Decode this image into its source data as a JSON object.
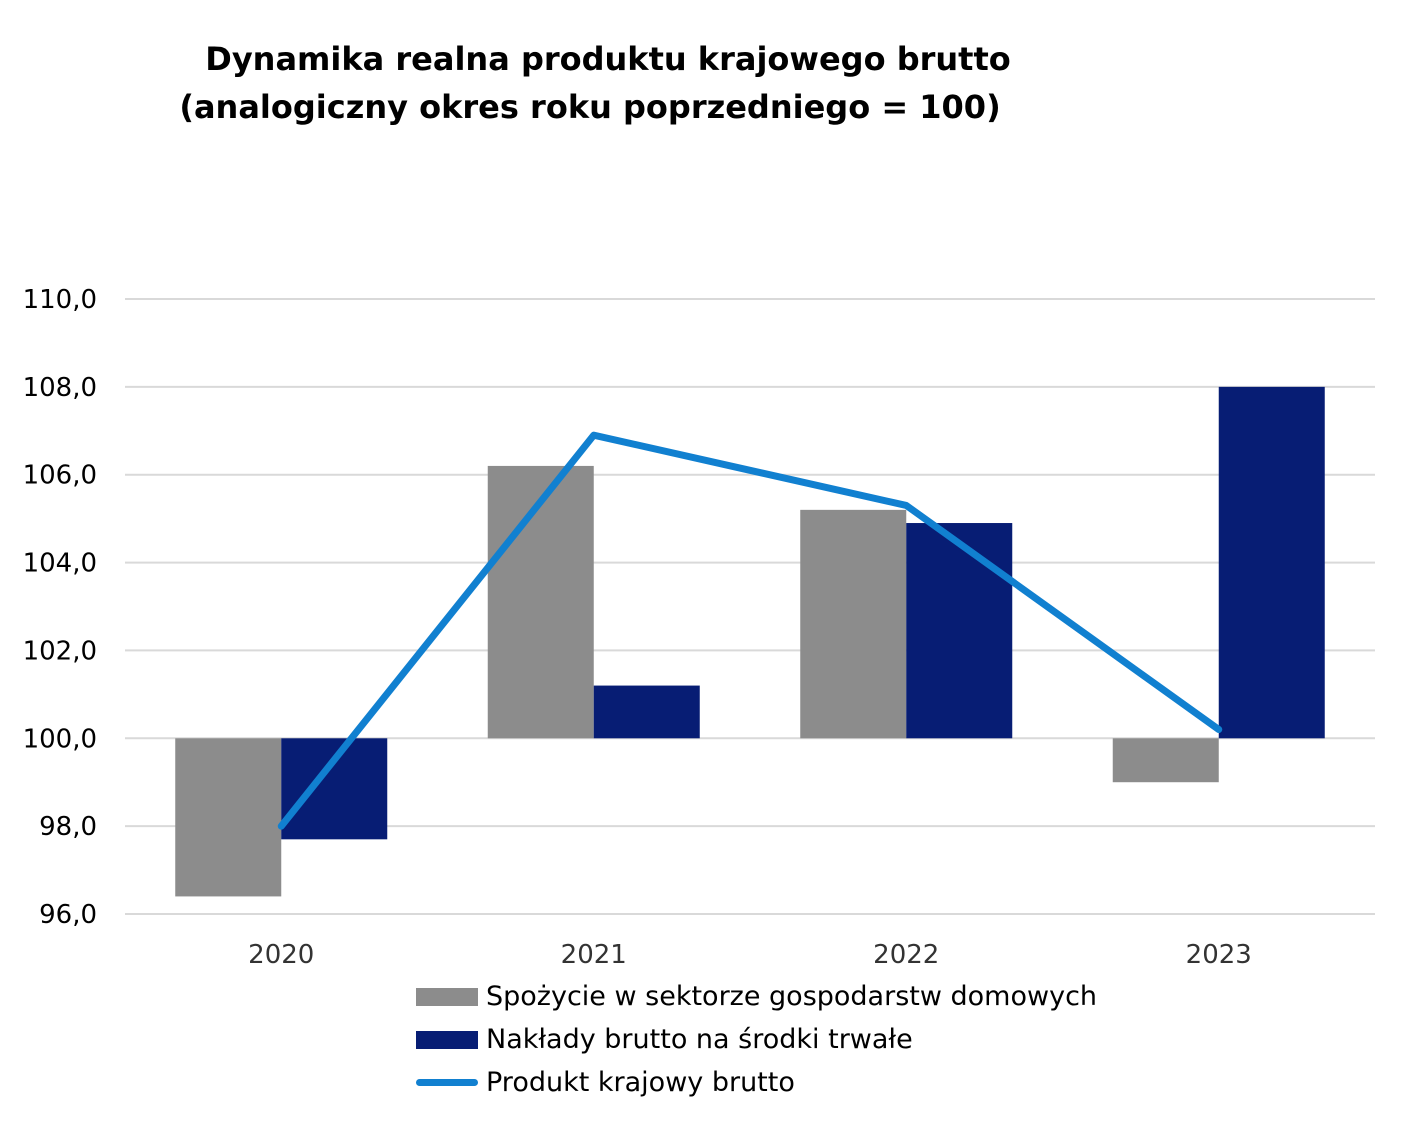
{
  "chart_data": {
    "type": "bar",
    "title": "Dynamika realna produktu krajowego brutto",
    "subtitle": "(analogiczny okres roku poprzedniego = 100)",
    "categories": [
      "2020",
      "2021",
      "2022",
      "2023"
    ],
    "baseline": 100,
    "ylim": [
      96,
      110
    ],
    "yticks": [
      "96,0",
      "98,0",
      "100,0",
      "102,0",
      "104,0",
      "106,0",
      "108,0",
      "110,0"
    ],
    "grid": true,
    "legend_position": "bottom",
    "series": [
      {
        "name": "Spożycie w sektorze gospodarstw domowych",
        "kind": "bar",
        "color": "#8c8c8c",
        "values": [
          96.4,
          106.2,
          105.2,
          99.0
        ]
      },
      {
        "name": "Nakłady brutto na środki trwałe",
        "kind": "bar",
        "color": "#071d74",
        "values": [
          97.7,
          101.2,
          104.9,
          108.0
        ]
      },
      {
        "name": "Produkt krajowy brutto",
        "kind": "line",
        "color": "#1180d0",
        "values": [
          98.0,
          106.9,
          105.3,
          100.2
        ]
      }
    ]
  }
}
